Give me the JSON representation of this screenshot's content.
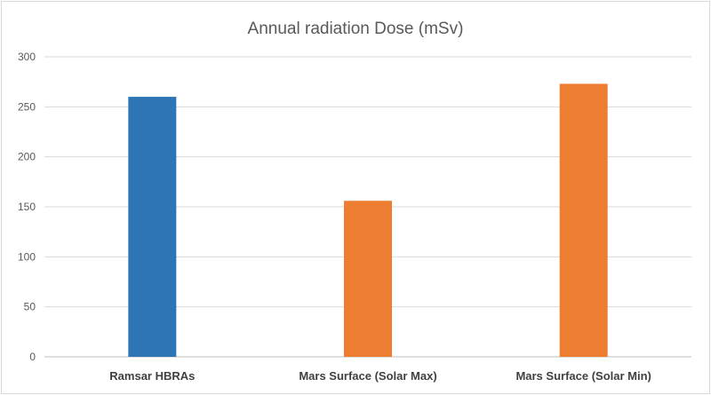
{
  "chart_data": {
    "type": "bar",
    "title": "Annual radiation Dose (mSv)",
    "xlabel": "",
    "ylabel": "",
    "categories": [
      "Ramsar HBRAs",
      "Mars Surface (Solar Max)",
      "Mars Surface (Solar Min)"
    ],
    "values": [
      260,
      156,
      273
    ],
    "bar_colors": [
      "#2e75b6",
      "#ed7d31",
      "#ed7d31"
    ],
    "ylim": [
      0,
      300
    ],
    "yticks": [
      "0",
      "50",
      "100",
      "150",
      "200",
      "250",
      "300"
    ],
    "grid": true,
    "legend": "none"
  }
}
